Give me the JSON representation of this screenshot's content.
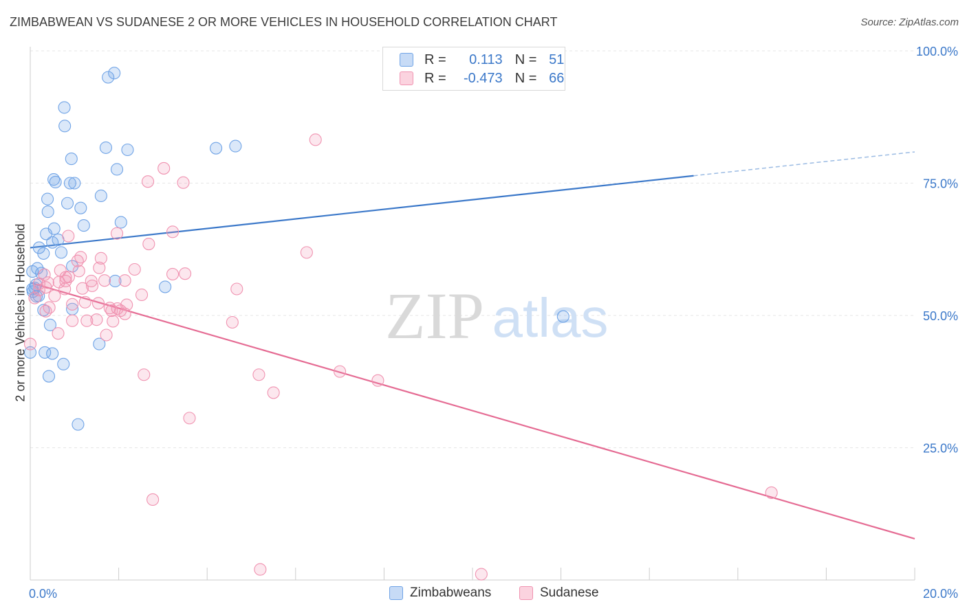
{
  "title": "ZIMBABWEAN VS SUDANESE 2 OR MORE VEHICLES IN HOUSEHOLD CORRELATION CHART",
  "source": "Source: ZipAtlas.com",
  "legend": {
    "r_label": "R =",
    "n_label": "N =",
    "rows": [
      {
        "r": "0.113",
        "n": "51",
        "color": "#6fa3e6"
      },
      {
        "r": "-0.473",
        "n": "66",
        "color": "#f092b0"
      }
    ]
  },
  "watermark": {
    "zip": "ZIP",
    "atlas": "atlas"
  },
  "chart_data": {
    "type": "scatter",
    "ylabel": "2 or more Vehicles in Household",
    "xlim": [
      0,
      20
    ],
    "ylim": [
      0,
      100
    ],
    "x_tick_labels": [
      "0.0%",
      "20.0%"
    ],
    "y_tick_values": [
      25,
      50,
      75,
      100
    ],
    "y_tick_labels": [
      "25.0%",
      "50.0%",
      "75.0%",
      "100.0%"
    ],
    "series": [
      {
        "name": "Zimbabweans",
        "color": "#6fa3e6",
        "trend": {
          "x0": 0,
          "y0": 62.8,
          "x1": 15.0,
          "y1": 76.4,
          "x_end_dashed": 20,
          "y_end_dashed": 80.9
        },
        "points": [
          [
            1.9,
            95.8
          ],
          [
            1.76,
            95.0
          ],
          [
            0.77,
            89.3
          ],
          [
            0.78,
            85.8
          ],
          [
            1.71,
            81.7
          ],
          [
            2.2,
            81.3
          ],
          [
            4.2,
            81.6
          ],
          [
            4.64,
            82.0
          ],
          [
            0.93,
            79.6
          ],
          [
            1.96,
            77.6
          ],
          [
            0.9,
            75.0
          ],
          [
            1.0,
            75.0
          ],
          [
            0.53,
            75.7
          ],
          [
            0.57,
            75.2
          ],
          [
            1.6,
            72.6
          ],
          [
            0.39,
            72.0
          ],
          [
            0.84,
            71.2
          ],
          [
            1.14,
            70.3
          ],
          [
            0.4,
            69.6
          ],
          [
            2.05,
            67.6
          ],
          [
            1.21,
            67.0
          ],
          [
            0.54,
            66.4
          ],
          [
            0.36,
            65.4
          ],
          [
            0.63,
            64.3
          ],
          [
            0.5,
            63.8
          ],
          [
            0.2,
            62.8
          ],
          [
            0.3,
            61.7
          ],
          [
            0.7,
            61.9
          ],
          [
            0.95,
            59.3
          ],
          [
            0.16,
            58.9
          ],
          [
            0.05,
            58.3
          ],
          [
            0.25,
            58.0
          ],
          [
            1.92,
            56.5
          ],
          [
            0.13,
            55.8
          ],
          [
            0.1,
            55.2
          ],
          [
            0.06,
            54.5
          ],
          [
            0.14,
            53.6
          ],
          [
            0.19,
            53.7
          ],
          [
            0.95,
            51.2
          ],
          [
            0.3,
            51.0
          ],
          [
            3.05,
            55.4
          ],
          [
            12.05,
            49.8
          ],
          [
            0.45,
            48.2
          ],
          [
            1.56,
            44.6
          ],
          [
            0.33,
            43.0
          ],
          [
            0.5,
            42.8
          ],
          [
            0.75,
            40.8
          ],
          [
            0.42,
            38.5
          ],
          [
            1.08,
            29.4
          ],
          [
            0.0,
            43.0
          ],
          [
            0.05,
            55.0
          ]
        ]
      },
      {
        "name": "Sudanese",
        "color": "#f092b0",
        "trend": {
          "x0": 0,
          "y0": 56.2,
          "x1": 20,
          "y1": 7.8
        },
        "points": [
          [
            6.45,
            83.2
          ],
          [
            3.02,
            77.8
          ],
          [
            2.66,
            75.3
          ],
          [
            3.46,
            75.1
          ],
          [
            3.22,
            65.8
          ],
          [
            1.96,
            65.5
          ],
          [
            0.86,
            65.0
          ],
          [
            2.68,
            63.5
          ],
          [
            6.25,
            61.9
          ],
          [
            1.14,
            61.0
          ],
          [
            1.6,
            60.8
          ],
          [
            1.07,
            60.3
          ],
          [
            2.36,
            58.7
          ],
          [
            3.22,
            57.8
          ],
          [
            1.1,
            58.4
          ],
          [
            0.68,
            58.5
          ],
          [
            3.5,
            57.9
          ],
          [
            0.32,
            57.7
          ],
          [
            0.87,
            57.3
          ],
          [
            1.56,
            59.0
          ],
          [
            1.68,
            56.6
          ],
          [
            1.38,
            56.5
          ],
          [
            0.8,
            56.5
          ],
          [
            0.65,
            56.3
          ],
          [
            0.4,
            56.2
          ],
          [
            2.14,
            56.6
          ],
          [
            1.4,
            55.6
          ],
          [
            0.78,
            55.0
          ],
          [
            0.35,
            55.3
          ],
          [
            4.67,
            55.0
          ],
          [
            1.18,
            55.1
          ],
          [
            0.55,
            53.7
          ],
          [
            2.52,
            53.9
          ],
          [
            1.24,
            52.5
          ],
          [
            1.54,
            52.3
          ],
          [
            0.95,
            52.1
          ],
          [
            2.18,
            52.0
          ],
          [
            1.8,
            51.4
          ],
          [
            1.97,
            51.3
          ],
          [
            0.43,
            51.5
          ],
          [
            0.35,
            50.8
          ],
          [
            2.04,
            50.9
          ],
          [
            2.14,
            50.3
          ],
          [
            1.84,
            50.9
          ],
          [
            1.5,
            49.2
          ],
          [
            1.28,
            49.0
          ],
          [
            0.95,
            49.0
          ],
          [
            1.87,
            48.9
          ],
          [
            4.57,
            48.7
          ],
          [
            0.63,
            46.6
          ],
          [
            1.72,
            46.3
          ],
          [
            0.0,
            44.6
          ],
          [
            0.2,
            54.8
          ],
          [
            7.0,
            39.4
          ],
          [
            7.86,
            37.7
          ],
          [
            2.57,
            38.8
          ],
          [
            5.17,
            38.8
          ],
          [
            5.5,
            35.4
          ],
          [
            3.6,
            30.6
          ],
          [
            0.8,
            57.2
          ],
          [
            2.77,
            15.2
          ],
          [
            16.76,
            16.5
          ],
          [
            5.2,
            2.0
          ],
          [
            10.2,
            1.1
          ],
          [
            0.1,
            53.3
          ],
          [
            0.2,
            56.0
          ]
        ]
      }
    ]
  },
  "bottom_legend": [
    "Zimbabweans",
    "Sudanese"
  ]
}
